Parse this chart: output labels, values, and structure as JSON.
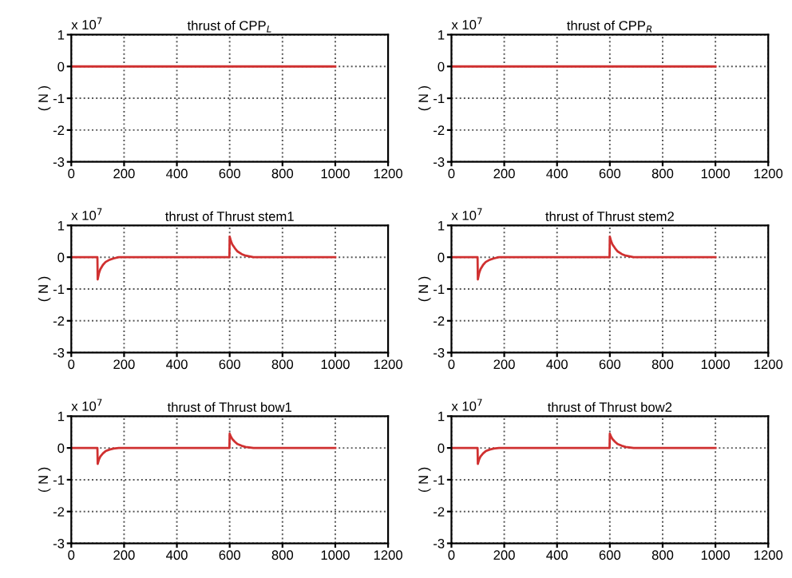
{
  "chart_data": [
    {
      "type": "line",
      "title": "thrust of CPP$_{L}$",
      "ylabel": "( N )",
      "annotations": [
        "x 10$^{7}$"
      ],
      "xlim": [
        0,
        1200
      ],
      "xticks": [
        0,
        200,
        400,
        600,
        800,
        1000,
        1200
      ],
      "ylim": [
        -3,
        1
      ],
      "yticks": [
        -3,
        -2,
        -1,
        0,
        1
      ],
      "grid": true,
      "line_style": "solid",
      "marker": "none",
      "series": [
        {
          "color": "#d03030",
          "x": [
            0,
            1000
          ],
          "values": [
            0,
            0
          ]
        }
      ]
    },
    {
      "type": "line",
      "title": "thrust of CPP$_{R}$",
      "ylabel": "( N )",
      "annotations": [
        "x 10$^{7}$"
      ],
      "xlim": [
        0,
        1200
      ],
      "xticks": [
        0,
        200,
        400,
        600,
        800,
        1000,
        1200
      ],
      "ylim": [
        -3,
        1
      ],
      "yticks": [
        -3,
        -2,
        -1,
        0,
        1
      ],
      "grid": true,
      "line_style": "solid",
      "marker": "none",
      "series": [
        {
          "color": "#d03030",
          "x": [
            0,
            1000
          ],
          "values": [
            0,
            0
          ]
        }
      ]
    },
    {
      "type": "line",
      "title": "thrust of Thrust stem1",
      "ylabel": "( N )",
      "annotations": [
        "x 10$^{7}$"
      ],
      "xlim": [
        0,
        1200
      ],
      "xticks": [
        0,
        200,
        400,
        600,
        800,
        1000,
        1200
      ],
      "ylim": [
        -3,
        1
      ],
      "yticks": [
        -3,
        -2,
        -1,
        0,
        1
      ],
      "grid": true,
      "line_style": "solid",
      "marker": "none",
      "series": [
        {
          "color": "#d03030",
          "x": [
            0,
            99,
            100,
            105,
            110,
            120,
            130,
            145,
            160,
            180,
            599,
            600,
            605,
            610,
            620,
            630,
            645,
            660,
            690,
            1000
          ],
          "values": [
            0,
            0,
            -0.7,
            -0.5,
            -0.38,
            -0.24,
            -0.15,
            -0.08,
            -0.04,
            0,
            0,
            0.65,
            0.5,
            0.4,
            0.28,
            0.18,
            0.1,
            0.05,
            0,
            0
          ]
        }
      ]
    },
    {
      "type": "line",
      "title": "thrust of Thrust stem2",
      "ylabel": "( N )",
      "annotations": [
        "x 10$^{7}$"
      ],
      "xlim": [
        0,
        1200
      ],
      "xticks": [
        0,
        200,
        400,
        600,
        800,
        1000,
        1200
      ],
      "ylim": [
        -3,
        1
      ],
      "yticks": [
        -3,
        -2,
        -1,
        0,
        1
      ],
      "grid": true,
      "line_style": "solid",
      "marker": "none",
      "series": [
        {
          "color": "#d03030",
          "x": [
            0,
            99,
            100,
            105,
            110,
            120,
            130,
            145,
            160,
            180,
            599,
            600,
            605,
            610,
            620,
            630,
            645,
            660,
            690,
            1000
          ],
          "values": [
            0,
            0,
            -0.7,
            -0.5,
            -0.38,
            -0.24,
            -0.15,
            -0.08,
            -0.04,
            0,
            0,
            0.65,
            0.5,
            0.4,
            0.28,
            0.18,
            0.1,
            0.05,
            0,
            0
          ]
        }
      ]
    },
    {
      "type": "line",
      "title": "thrust of Thrust bow1",
      "ylabel": "( N )",
      "annotations": [
        "x 10$^{7}$"
      ],
      "xlim": [
        0,
        1200
      ],
      "xticks": [
        0,
        200,
        400,
        600,
        800,
        1000,
        1200
      ],
      "ylim": [
        -3,
        1
      ],
      "yticks": [
        -3,
        -2,
        -1,
        0,
        1
      ],
      "grid": true,
      "line_style": "solid",
      "marker": "none",
      "series": [
        {
          "color": "#d03030",
          "x": [
            0,
            99,
            100,
            105,
            110,
            120,
            130,
            145,
            160,
            180,
            599,
            600,
            605,
            610,
            620,
            630,
            645,
            660,
            690,
            1000
          ],
          "values": [
            0,
            0,
            -0.5,
            -0.36,
            -0.27,
            -0.17,
            -0.1,
            -0.05,
            -0.02,
            0,
            0,
            0.45,
            0.35,
            0.28,
            0.19,
            0.12,
            0.07,
            0.03,
            0,
            0
          ]
        }
      ]
    },
    {
      "type": "line",
      "title": "thrust of Thrust bow2",
      "ylabel": "( N )",
      "annotations": [
        "x 10$^{7}$"
      ],
      "xlim": [
        0,
        1200
      ],
      "xticks": [
        0,
        200,
        400,
        600,
        800,
        1000,
        1200
      ],
      "ylim": [
        -3,
        1
      ],
      "yticks": [
        -3,
        -2,
        -1,
        0,
        1
      ],
      "grid": true,
      "line_style": "solid",
      "marker": "none",
      "series": [
        {
          "color": "#d03030",
          "x": [
            0,
            99,
            100,
            105,
            110,
            120,
            130,
            145,
            160,
            180,
            599,
            600,
            605,
            610,
            620,
            630,
            645,
            660,
            690,
            1000
          ],
          "values": [
            0,
            0,
            -0.5,
            -0.36,
            -0.27,
            -0.17,
            -0.1,
            -0.05,
            -0.02,
            0,
            0,
            0.45,
            0.35,
            0.28,
            0.19,
            0.12,
            0.07,
            0.03,
            0,
            0
          ]
        }
      ]
    }
  ]
}
